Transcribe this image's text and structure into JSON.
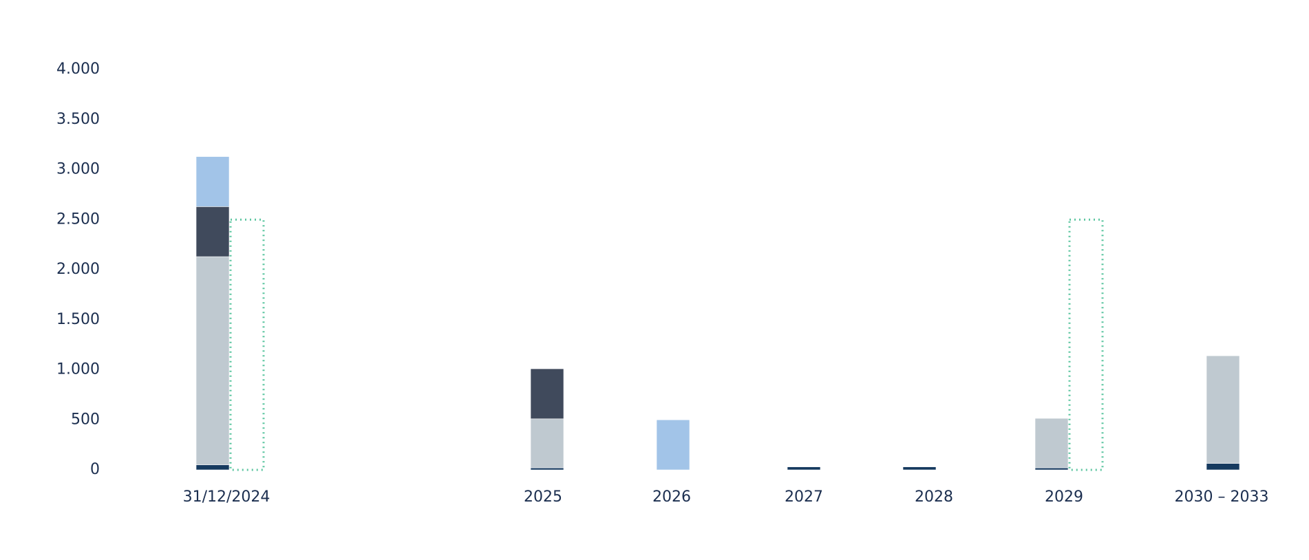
{
  "chart_data": {
    "type": "stacked_bar",
    "categories": [
      "31/12/2024",
      "2025",
      "2026",
      "2027",
      "2028",
      "2029",
      "2030 – 2033"
    ],
    "series": [
      {
        "color": "#163a5f",
        "values": [
          50,
          20,
          null,
          30,
          30,
          20,
          65
        ]
      },
      {
        "color": "#bfc9d0",
        "values": [
          2080,
          490,
          null,
          null,
          null,
          495,
          1075
        ]
      },
      {
        "color": "#404a5c",
        "values": [
          500,
          500,
          null,
          null,
          null,
          null,
          null
        ]
      },
      {
        "color": "#a2c4e8",
        "values": [
          500,
          null,
          500,
          null,
          null,
          null,
          null
        ]
      },
      {
        "color": "#5cc6a0",
        "style": "dotted",
        "stack": false,
        "values": [
          2500,
          null,
          null,
          null,
          null,
          2500,
          null
        ]
      }
    ],
    "ylim": [
      0,
      4000
    ],
    "yticks": [
      0,
      {
        "value": 500,
        "label": "500"
      },
      {
        "value": 1000,
        "label": "1.000"
      },
      {
        "value": 1500,
        "label": "1.500"
      },
      {
        "value": 2000,
        "label": "2.000"
      },
      {
        "value": 2500,
        "label": "2.500"
      },
      {
        "value": 3000,
        "label": "3.000"
      },
      {
        "value": 3500,
        "label": "3.500"
      },
      {
        "value": 4000,
        "label": "4.000"
      }
    ],
    "grid": false
  }
}
